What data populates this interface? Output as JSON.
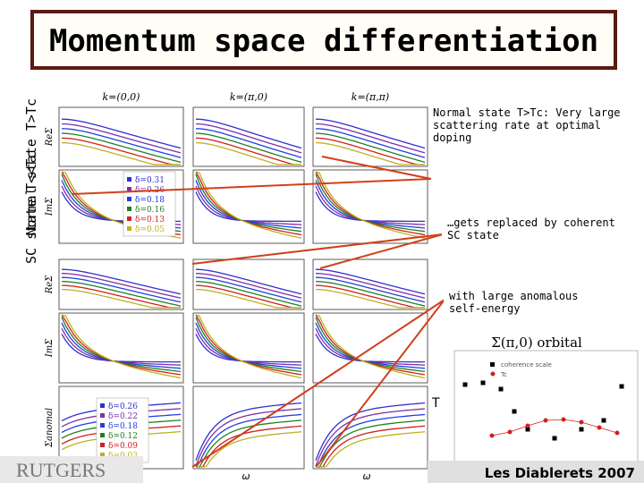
{
  "title": "Momentum space differentiation",
  "side_labels": [
    "Normal state T>Tc",
    "SC state T<<Tc"
  ],
  "panels": {
    "headers": [
      "k=(0,0)",
      "k=(π,0)",
      "k=(π,π)"
    ],
    "y_labels": [
      "ReΣ",
      "ImΣ",
      "ReΣ",
      "ImΣ",
      "Σanomal"
    ],
    "x_label": "ω"
  },
  "legend_top": [
    "δ=0.31",
    "δ=0.26",
    "δ=0.18",
    "δ=0.16",
    "δ=0.13",
    "δ=0.05"
  ],
  "legend_bottom": [
    "δ=0.26",
    "δ=0.22",
    "δ=0.18",
    "δ=0.12",
    "δ=0.09",
    "δ=0.03"
  ],
  "annotations": [
    "Normal state T>Tc: Very large scattering rate at optimal doping",
    "…gets replaced by coherent SC state",
    "with large anomalous self-energy"
  ],
  "inset": {
    "title": "Σ(π,0) orbital",
    "legend": [
      "coherence scale",
      "Tc"
    ],
    "y_label": "T"
  },
  "footer": {
    "logo": "RUTGERS",
    "event": "Les Diablerets 2007"
  }
}
